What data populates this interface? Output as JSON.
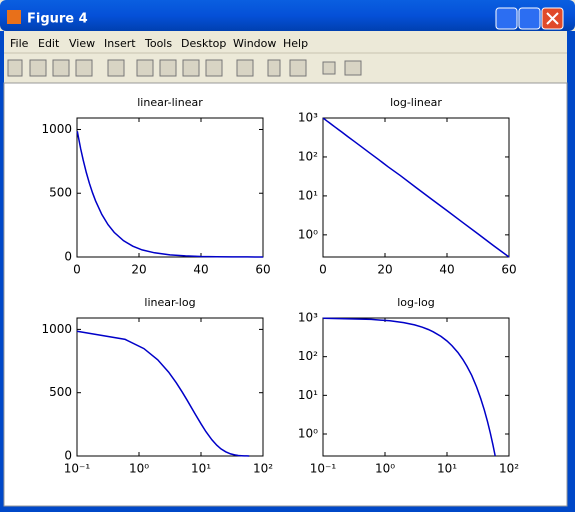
{
  "window": {
    "title": "Figure 4",
    "menu": [
      "File",
      "Edit",
      "View",
      "Insert",
      "Tools",
      "Desktop",
      "Window",
      "Help"
    ]
  },
  "chart_data": [
    {
      "type": "line",
      "title": "linear-linear",
      "xscale": "linear",
      "yscale": "linear",
      "x": [
        0.1,
        0.6,
        1.2,
        2,
        3,
        4,
        5,
        6,
        8,
        10,
        12,
        15,
        18,
        21,
        25,
        30,
        35,
        40,
        45,
        50,
        55,
        60
      ],
      "series": [
        {
          "color": "#0000c8",
          "values": [
            986,
            921,
            848,
            760,
            663,
            578,
            504,
            440,
            334,
            254,
            193,
            128,
            85,
            56,
            33,
            16.4,
            8.3,
            4.2,
            2.1,
            1.06,
            0.53,
            0.27
          ]
        }
      ],
      "xlim": [
        0,
        60
      ],
      "ylim": [
        0,
        1090
      ],
      "xticks": [
        0,
        20,
        40,
        60
      ],
      "yticks": [
        0,
        500,
        1000
      ]
    },
    {
      "type": "line",
      "title": "log-linear",
      "xscale": "linear",
      "yscale": "log",
      "x": [
        0.1,
        0.6,
        1.2,
        2,
        3,
        4,
        5,
        6,
        8,
        10,
        12,
        15,
        18,
        21,
        25,
        30,
        35,
        40,
        45,
        50,
        55,
        60
      ],
      "series": [
        {
          "color": "#0000c8",
          "values": [
            986,
            921,
            848,
            760,
            663,
            578,
            504,
            440,
            334,
            254,
            193,
            128,
            85,
            56,
            33,
            16.4,
            8.3,
            4.2,
            2.1,
            1.06,
            0.53,
            0.27
          ]
        }
      ],
      "xlim": [
        0,
        60
      ],
      "ylim": [
        0.27,
        1000
      ],
      "xticks": [
        0,
        20,
        40,
        60
      ],
      "yticks": [
        {
          "value": 1,
          "label": "10⁰"
        },
        {
          "value": 10,
          "label": "10¹"
        },
        {
          "value": 100,
          "label": "10²"
        },
        {
          "value": 1000,
          "label": "10³"
        }
      ]
    },
    {
      "type": "line",
      "title": "linear-log",
      "xscale": "log",
      "yscale": "linear",
      "x": [
        0.1,
        0.6,
        1.2,
        2,
        3,
        4,
        5,
        6,
        8,
        10,
        12,
        15,
        18,
        21,
        25,
        30,
        35,
        40,
        45,
        50,
        55,
        60
      ],
      "series": [
        {
          "color": "#0000c8",
          "values": [
            986,
            921,
            848,
            760,
            663,
            578,
            504,
            440,
            334,
            254,
            193,
            128,
            85,
            56,
            33,
            16.4,
            8.3,
            4.2,
            2.1,
            1.06,
            0.53,
            0.27
          ]
        }
      ],
      "xlim": [
        0.1,
        100
      ],
      "ylim": [
        0,
        1090
      ],
      "xticks": [
        {
          "value": 0.1,
          "label": "10⁻¹"
        },
        {
          "value": 1,
          "label": "10⁰"
        },
        {
          "value": 10,
          "label": "10¹"
        },
        {
          "value": 100,
          "label": "10²"
        }
      ],
      "yticks": [
        0,
        500,
        1000
      ]
    },
    {
      "type": "line",
      "title": "log-log",
      "xscale": "log",
      "yscale": "log",
      "x": [
        0.1,
        0.6,
        1.2,
        2,
        3,
        4,
        5,
        6,
        8,
        10,
        12,
        15,
        18,
        21,
        25,
        30,
        35,
        40,
        45,
        50,
        55,
        60
      ],
      "series": [
        {
          "color": "#0000c8",
          "values": [
            986,
            921,
            848,
            760,
            663,
            578,
            504,
            440,
            334,
            254,
            193,
            128,
            85,
            56,
            33,
            16.4,
            8.3,
            4.2,
            2.1,
            1.06,
            0.53,
            0.27
          ]
        }
      ],
      "xlim": [
        0.1,
        100
      ],
      "ylim": [
        0.27,
        1000
      ],
      "xticks": [
        {
          "value": 0.1,
          "label": "10⁻¹"
        },
        {
          "value": 1,
          "label": "10⁰"
        },
        {
          "value": 10,
          "label": "10¹"
        },
        {
          "value": 100,
          "label": "10²"
        }
      ],
      "yticks": [
        {
          "value": 1,
          "label": "10⁰"
        },
        {
          "value": 10,
          "label": "10¹"
        },
        {
          "value": 100,
          "label": "10²"
        },
        {
          "value": 1000,
          "label": "10³"
        }
      ]
    }
  ]
}
